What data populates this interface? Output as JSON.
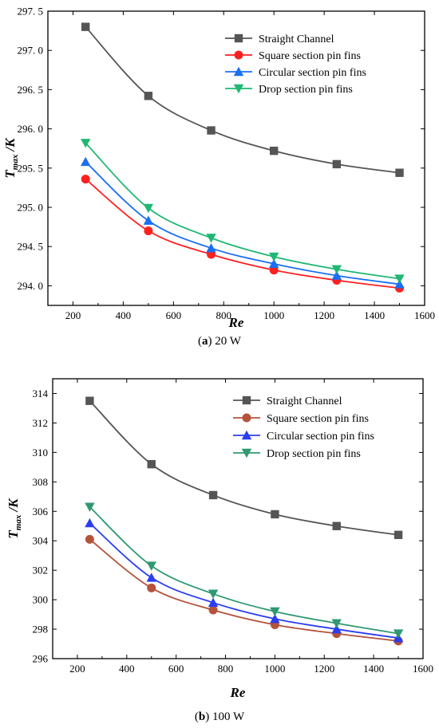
{
  "chart_data": [
    {
      "type": "line",
      "caption_letter": "a",
      "caption_rest": "20 W",
      "xlabel": "Re",
      "ylabel_main": "T",
      "ylabel_sub": "max",
      "ylabel_unit": "/K",
      "xlim": [
        100,
        1600
      ],
      "ylim": [
        293.75,
        297.5
      ],
      "xticks": [
        200,
        400,
        600,
        800,
        1000,
        1200,
        1400,
        1600
      ],
      "yticks": [
        294.0,
        294.5,
        295.0,
        295.5,
        296.0,
        296.5,
        297.0,
        297.5
      ],
      "ytick_labels": [
        "294. 0",
        "294. 5",
        "295. 0",
        "295. 5",
        "296. 0",
        "296. 5",
        "297. 0",
        "297. 5"
      ],
      "legend_position": "top-right",
      "x": [
        250,
        500,
        750,
        1000,
        1250,
        1500
      ],
      "series": [
        {
          "name": "Straight Channel",
          "color": "#555555",
          "marker": "square",
          "values": [
            297.3,
            296.42,
            295.98,
            295.72,
            295.55,
            295.44
          ]
        },
        {
          "name": "Square section pin fins",
          "color": "#ff2020",
          "marker": "circle",
          "values": [
            295.36,
            294.7,
            294.4,
            294.2,
            294.07,
            293.97
          ]
        },
        {
          "name": "Circular section pin fins",
          "color": "#1a6ef5",
          "marker": "triangle-up",
          "values": [
            295.58,
            294.83,
            294.48,
            294.28,
            294.13,
            294.02
          ]
        },
        {
          "name": "Drop section pin fins",
          "color": "#1fb872",
          "marker": "triangle-down",
          "values": [
            295.82,
            294.99,
            294.61,
            294.37,
            294.21,
            294.09
          ]
        }
      ]
    },
    {
      "type": "line",
      "caption_letter": "b",
      "caption_rest": "100 W",
      "xlabel": "Re",
      "ylabel_main": "T",
      "ylabel_sub": "max",
      "ylabel_unit": "/K",
      "xlim": [
        100,
        1600
      ],
      "ylim": [
        296,
        315
      ],
      "xticks": [
        200,
        400,
        600,
        800,
        1000,
        1200,
        1400,
        1600
      ],
      "yticks": [
        296,
        298,
        300,
        302,
        304,
        306,
        308,
        310,
        312,
        314
      ],
      "ytick_labels": [
        "296",
        "298",
        "300",
        "302",
        "304",
        "306",
        "308",
        "310",
        "312",
        "314"
      ],
      "legend_position": "top-right",
      "x": [
        250,
        500,
        750,
        1000,
        1250,
        1500
      ],
      "series": [
        {
          "name": "Straight Channel",
          "color": "#555555",
          "marker": "square",
          "values": [
            313.5,
            309.2,
            307.1,
            305.8,
            305.0,
            304.4
          ]
        },
        {
          "name": "Square section pin fins",
          "color": "#b5523a",
          "marker": "circle",
          "values": [
            304.1,
            300.8,
            299.3,
            298.3,
            297.7,
            297.2
          ]
        },
        {
          "name": "Circular section pin fins",
          "color": "#2a3df2",
          "marker": "triangle-up",
          "values": [
            305.2,
            301.5,
            299.8,
            298.7,
            298.0,
            297.4
          ]
        },
        {
          "name": "Drop section pin fins",
          "color": "#2e9970",
          "marker": "triangle-down",
          "values": [
            306.3,
            302.3,
            300.4,
            299.2,
            298.4,
            297.7
          ]
        }
      ]
    }
  ]
}
